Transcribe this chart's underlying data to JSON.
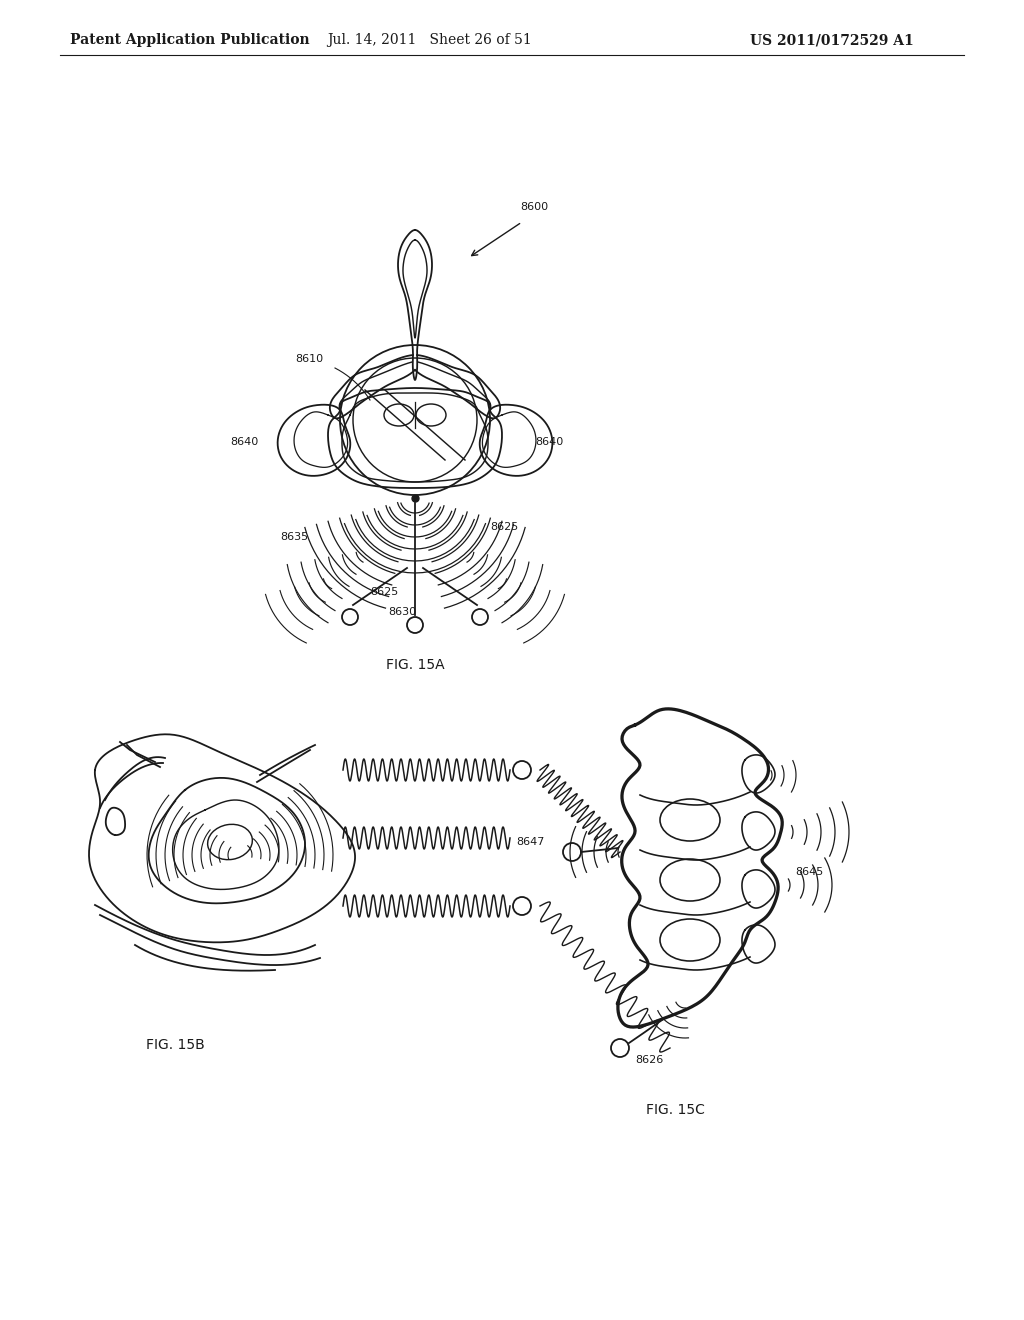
{
  "background_color": "#ffffff",
  "header_left": "Patent Application Publication",
  "header_center": "Jul. 14, 2011   Sheet 26 of 51",
  "header_right": "US 2011/0172529 A1",
  "fig15a_label": "FIG. 15A",
  "fig15b_label": "FIG. 15B",
  "fig15c_label": "FIG. 15C",
  "line_color": "#1a1a1a",
  "text_color": "#1a1a1a",
  "font_size_header": 10,
  "font_size_label": 8,
  "font_size_fig": 10
}
